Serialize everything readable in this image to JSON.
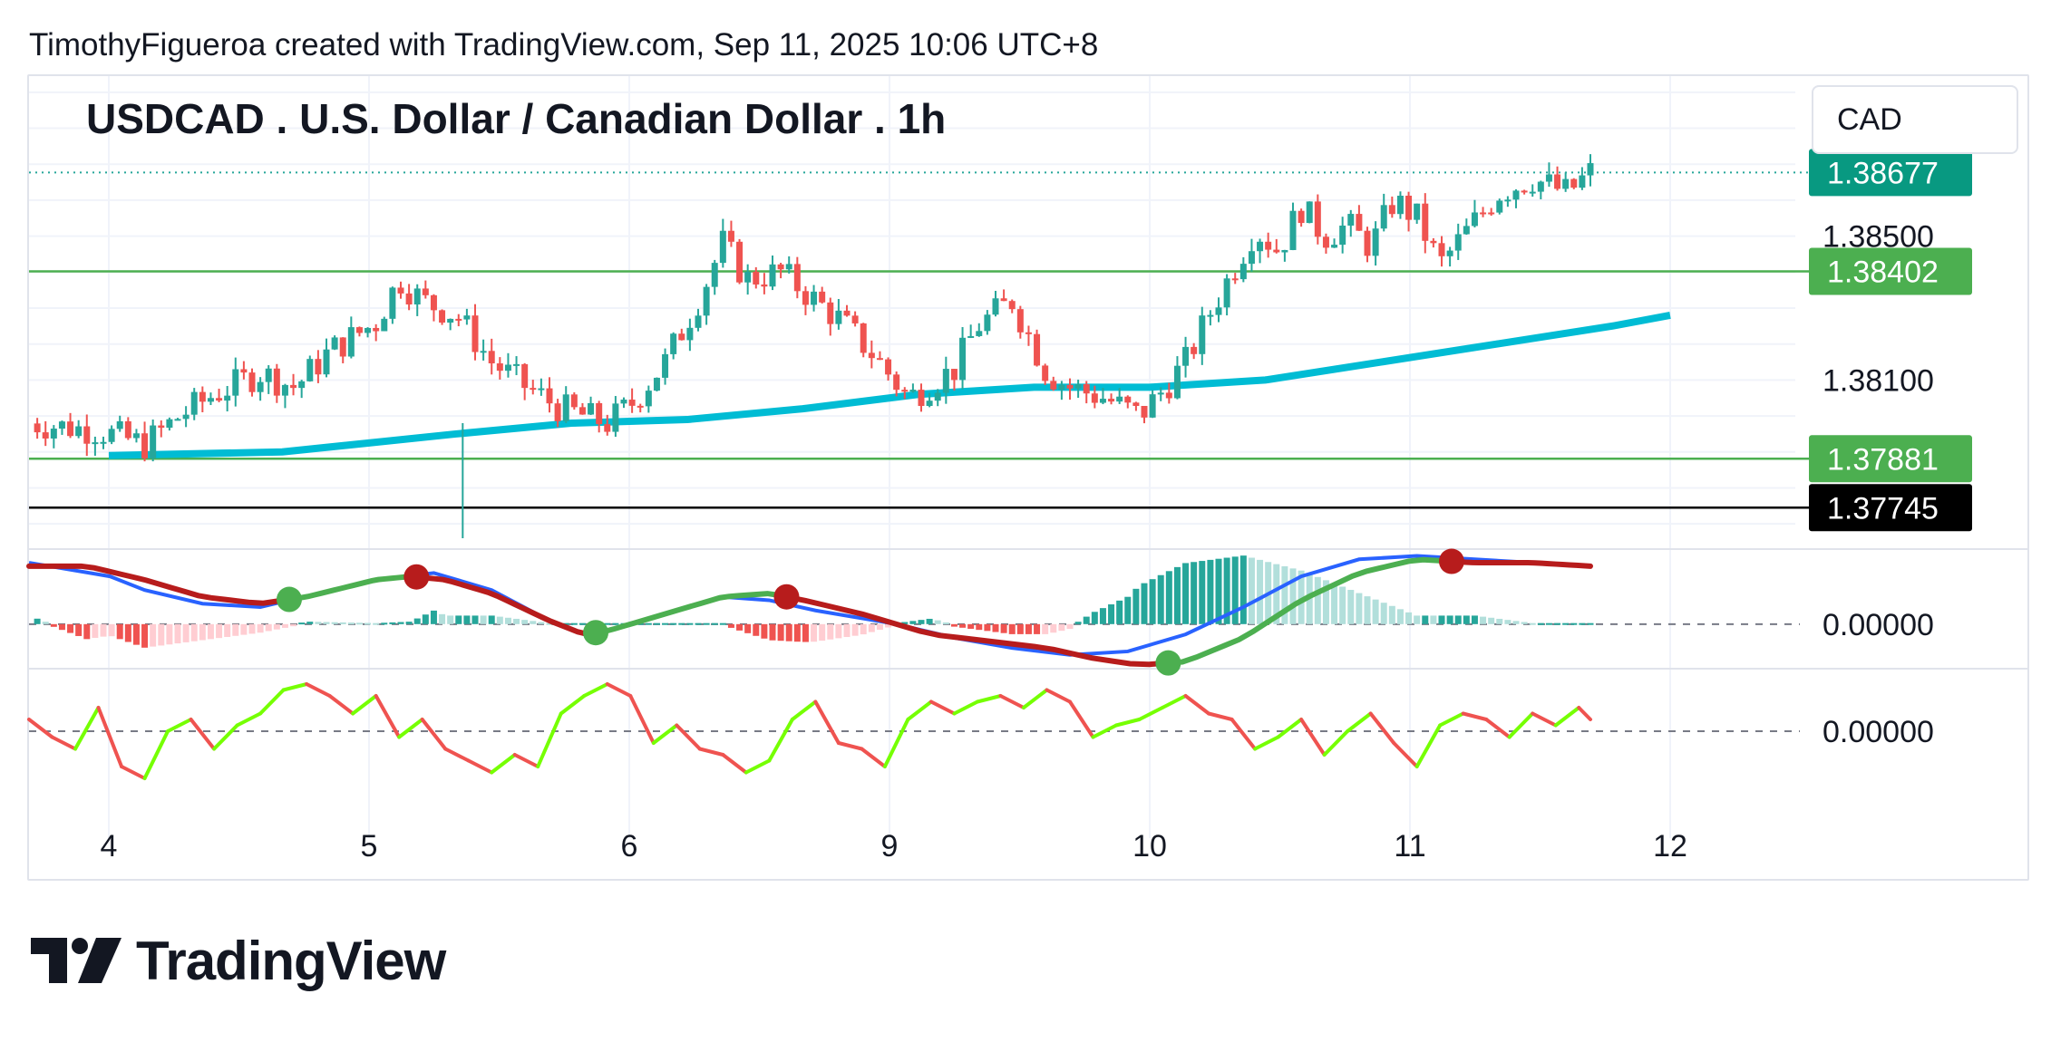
{
  "header": {
    "caption": "TimothyFigueroa created with TradingView.com, Sep 11, 2025 10:06 UTC+8"
  },
  "chart_title": "USDCAD . U.S. Dollar / Canadian Dollar . 1h",
  "currency": "CAD",
  "footer": {
    "brand": "TradingView"
  },
  "colors": {
    "up": "#26a69a",
    "down": "#ef5350",
    "ema": "#00bcd4",
    "level_line": "#4caf50",
    "black_line": "#000000",
    "badge_last": "#089981",
    "badge_level": "#4caf50",
    "badge_black": "#000000",
    "macd_line": "#2962ff",
    "signal_red": "#b71c1c",
    "signal_green": "#4caf50",
    "osc_up": "#76ff03",
    "osc_down": "#ef5350"
  },
  "chart_data": {
    "type": "candlestick",
    "symbol": "USDCAD",
    "timeframe": "1h",
    "x_ticks": [
      "4",
      "5",
      "6",
      "9",
      "10",
      "11",
      "12"
    ],
    "price_axis": {
      "ylim": [
        1.3765,
        1.3895
      ],
      "tick_labels": [
        "1.38500",
        "1.38100"
      ],
      "tick_values": [
        1.385,
        1.381
      ]
    },
    "price_badges": [
      {
        "label": "1.38677",
        "value": 1.38677,
        "kind": "last"
      },
      {
        "label": "1.38402",
        "value": 1.38402,
        "kind": "level"
      },
      {
        "label": "1.37881",
        "value": 1.37881,
        "kind": "level"
      },
      {
        "label": "1.37745",
        "value": 1.37745,
        "kind": "black"
      }
    ],
    "horizontal_lines": [
      1.38677,
      1.38402,
      1.37881,
      1.37745
    ],
    "close_path": [
      [
        0.0,
        1.3798
      ],
      [
        0.6,
        1.3796
      ],
      [
        1.0,
        1.3792
      ],
      [
        1.3,
        1.38
      ],
      [
        1.6,
        1.3806
      ],
      [
        2.0,
        1.3812
      ],
      [
        2.3,
        1.3808
      ],
      [
        2.6,
        1.3818
      ],
      [
        3.0,
        1.3826
      ],
      [
        3.2,
        1.3838
      ],
      [
        3.4,
        1.3832
      ],
      [
        3.7,
        1.3828
      ],
      [
        4.0,
        1.3815
      ],
      [
        4.3,
        1.3808
      ],
      [
        4.6,
        1.3802
      ],
      [
        5.0,
        1.3798
      ],
      [
        5.2,
        1.3803
      ],
      [
        5.5,
        1.3815
      ],
      [
        5.8,
        1.3833
      ],
      [
        6.0,
        1.3848
      ],
      [
        6.2,
        1.3838
      ],
      [
        6.5,
        1.384
      ],
      [
        6.8,
        1.3832
      ],
      [
        7.0,
        1.3827
      ],
      [
        7.3,
        1.3817
      ],
      [
        7.6,
        1.3805
      ],
      [
        8.0,
        1.3813
      ],
      [
        8.2,
        1.3825
      ],
      [
        8.5,
        1.3832
      ],
      [
        8.8,
        1.3812
      ],
      [
        9.0,
        1.3808
      ],
      [
        9.3,
        1.3805
      ],
      [
        9.6,
        1.38
      ],
      [
        9.8,
        1.3807
      ],
      [
        10.0,
        1.3815
      ],
      [
        10.2,
        1.3828
      ],
      [
        10.4,
        1.384
      ],
      [
        10.6,
        1.3852
      ],
      [
        10.8,
        1.3846
      ],
      [
        11.0,
        1.3858
      ],
      [
        11.2,
        1.385
      ],
      [
        11.4,
        1.3853
      ],
      [
        11.6,
        1.3847
      ],
      [
        11.8,
        1.386
      ],
      [
        12.0,
        1.3855
      ],
      [
        12.2,
        1.3842
      ],
      [
        12.4,
        1.385
      ],
      [
        12.7,
        1.3862
      ],
      [
        13.0,
        1.3866
      ],
      [
        13.3,
        1.3862
      ],
      [
        13.5,
        1.38677
      ]
    ],
    "ema_path": [
      [
        0.0,
        1.3789
      ],
      [
        1.5,
        1.379
      ],
      [
        3.0,
        1.3795
      ],
      [
        4.0,
        1.3798
      ],
      [
        5.0,
        1.3799
      ],
      [
        6.0,
        1.3802
      ],
      [
        7.0,
        1.3806
      ],
      [
        8.0,
        1.3808
      ],
      [
        9.0,
        1.3808
      ],
      [
        10.0,
        1.381
      ],
      [
        11.0,
        1.3815
      ],
      [
        12.0,
        1.382
      ],
      [
        13.0,
        1.3825
      ],
      [
        13.5,
        1.3828
      ]
    ],
    "indicator_1": {
      "zero_label": "0.00000",
      "ylim": [
        -0.0012,
        0.0022
      ],
      "macd_line": [
        [
          0.0,
          0.0018
        ],
        [
          0.7,
          0.0014
        ],
        [
          1.0,
          0.001
        ],
        [
          1.5,
          0.0006
        ],
        [
          2.0,
          0.0005
        ],
        [
          2.5,
          0.0009
        ],
        [
          3.0,
          0.0013
        ],
        [
          3.5,
          0.0015
        ],
        [
          4.0,
          0.001
        ],
        [
          4.5,
          0.0001
        ],
        [
          4.8,
          -0.0003
        ],
        [
          5.0,
          -0.0002
        ],
        [
          5.5,
          0.0003
        ],
        [
          6.0,
          0.0008
        ],
        [
          6.4,
          0.0007
        ],
        [
          6.8,
          0.0004
        ],
        [
          7.5,
          0.0
        ],
        [
          8.0,
          -0.0004
        ],
        [
          8.5,
          -0.0007
        ],
        [
          9.0,
          -0.0009
        ],
        [
          9.5,
          -0.0008
        ],
        [
          10.0,
          -0.0003
        ],
        [
          10.5,
          0.0005
        ],
        [
          11.0,
          0.0014
        ],
        [
          11.5,
          0.0019
        ],
        [
          12.0,
          0.002
        ],
        [
          12.5,
          0.0019
        ],
        [
          13.0,
          0.0018
        ],
        [
          13.5,
          0.0017
        ]
      ],
      "signal_line": [
        [
          0.0,
          0.0017
        ],
        [
          0.5,
          0.0017
        ],
        [
          1.0,
          0.0013
        ],
        [
          1.5,
          0.0008
        ],
        [
          2.0,
          0.0006
        ],
        [
          2.4,
          0.0008
        ],
        [
          3.0,
          0.0013
        ],
        [
          3.3,
          0.0014
        ],
        [
          3.6,
          0.0013
        ],
        [
          4.0,
          0.0009
        ],
        [
          4.5,
          0.0001
        ],
        [
          4.8,
          -0.0003
        ],
        [
          5.0,
          -0.0002
        ],
        [
          5.5,
          0.0003
        ],
        [
          6.0,
          0.0008
        ],
        [
          6.4,
          0.0009
        ],
        [
          6.7,
          0.0007
        ],
        [
          7.2,
          0.0003
        ],
        [
          7.8,
          -0.0003
        ],
        [
          8.3,
          -0.0005
        ],
        [
          8.8,
          -0.0007
        ],
        [
          9.2,
          -0.001
        ],
        [
          9.6,
          -0.0012
        ],
        [
          10.0,
          -0.0011
        ],
        [
          10.5,
          -0.0004
        ],
        [
          11.0,
          0.0007
        ],
        [
          11.5,
          0.0015
        ],
        [
          12.0,
          0.0019
        ],
        [
          12.5,
          0.0018
        ],
        [
          13.0,
          0.0018
        ],
        [
          13.5,
          0.0017
        ]
      ],
      "crossovers": [
        {
          "x": 2.25,
          "y": 0.0005,
          "type": "bull"
        },
        {
          "x": 3.35,
          "y": 0.0014,
          "type": "bear"
        },
        {
          "x": 4.9,
          "y": -0.0002,
          "type": "bull"
        },
        {
          "x": 6.55,
          "y": 0.0008,
          "type": "bear"
        },
        {
          "x": 9.85,
          "y": -0.0012,
          "type": "bull"
        },
        {
          "x": 12.3,
          "y": 0.0018,
          "type": "bear"
        }
      ]
    },
    "indicator_2": {
      "zero_label": "0.00000",
      "ylim": [
        -1.0,
        1.0
      ],
      "series": [
        [
          0.0,
          0.2
        ],
        [
          0.2,
          -0.1
        ],
        [
          0.4,
          -0.3
        ],
        [
          0.6,
          0.4
        ],
        [
          0.8,
          -0.6
        ],
        [
          1.0,
          -0.8
        ],
        [
          1.2,
          0.0
        ],
        [
          1.4,
          0.2
        ],
        [
          1.6,
          -0.3
        ],
        [
          1.8,
          0.1
        ],
        [
          2.0,
          0.3
        ],
        [
          2.2,
          0.7
        ],
        [
          2.4,
          0.8
        ],
        [
          2.6,
          0.6
        ],
        [
          2.8,
          0.3
        ],
        [
          3.0,
          0.6
        ],
        [
          3.2,
          -0.1
        ],
        [
          3.4,
          0.2
        ],
        [
          3.6,
          -0.3
        ],
        [
          3.8,
          -0.5
        ],
        [
          4.0,
          -0.7
        ],
        [
          4.2,
          -0.4
        ],
        [
          4.4,
          -0.6
        ],
        [
          4.6,
          0.3
        ],
        [
          4.8,
          0.6
        ],
        [
          5.0,
          0.8
        ],
        [
          5.2,
          0.6
        ],
        [
          5.4,
          -0.2
        ],
        [
          5.6,
          0.1
        ],
        [
          5.8,
          -0.3
        ],
        [
          6.0,
          -0.4
        ],
        [
          6.2,
          -0.7
        ],
        [
          6.4,
          -0.5
        ],
        [
          6.6,
          0.2
        ],
        [
          6.8,
          0.5
        ],
        [
          7.0,
          -0.2
        ],
        [
          7.2,
          -0.3
        ],
        [
          7.4,
          -0.6
        ],
        [
          7.6,
          0.2
        ],
        [
          7.8,
          0.5
        ],
        [
          8.0,
          0.3
        ],
        [
          8.2,
          0.5
        ],
        [
          8.4,
          0.6
        ],
        [
          8.6,
          0.4
        ],
        [
          8.8,
          0.7
        ],
        [
          9.0,
          0.5
        ],
        [
          9.2,
          -0.1
        ],
        [
          9.4,
          0.1
        ],
        [
          9.6,
          0.2
        ],
        [
          9.8,
          0.4
        ],
        [
          10.0,
          0.6
        ],
        [
          10.2,
          0.3
        ],
        [
          10.4,
          0.2
        ],
        [
          10.6,
          -0.3
        ],
        [
          10.8,
          -0.1
        ],
        [
          11.0,
          0.2
        ],
        [
          11.2,
          -0.4
        ],
        [
          11.4,
          0.0
        ],
        [
          11.6,
          0.3
        ],
        [
          11.8,
          -0.2
        ],
        [
          12.0,
          -0.6
        ],
        [
          12.2,
          0.1
        ],
        [
          12.4,
          0.3
        ],
        [
          12.6,
          0.2
        ],
        [
          12.8,
          -0.1
        ],
        [
          13.0,
          0.3
        ],
        [
          13.2,
          0.1
        ],
        [
          13.4,
          0.4
        ],
        [
          13.5,
          0.2
        ]
      ]
    }
  }
}
